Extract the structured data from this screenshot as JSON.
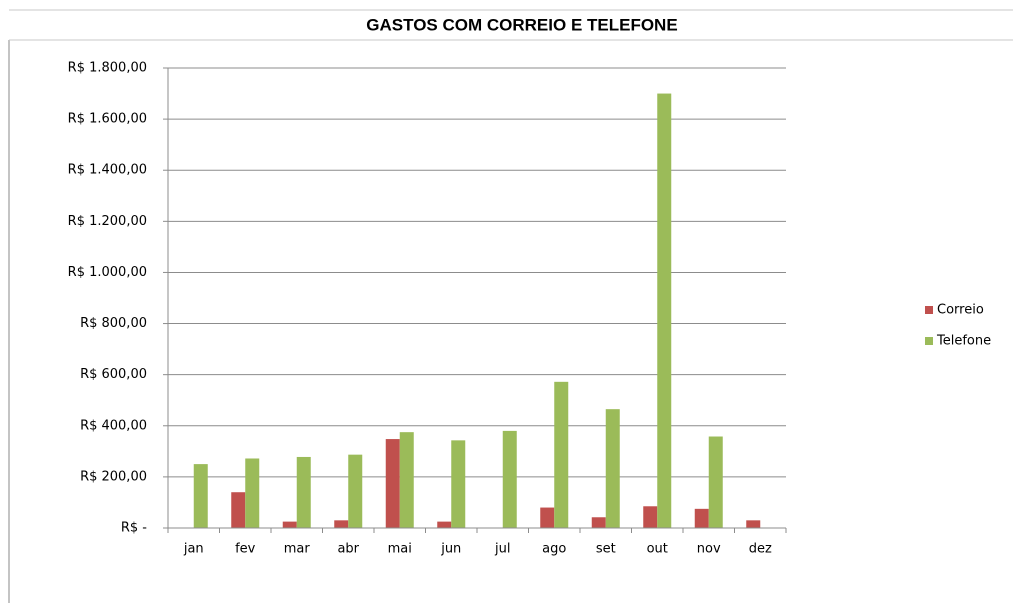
{
  "chart_data": {
    "type": "bar",
    "title": "GASTOS COM CORREIO E TELEFONE",
    "categories": [
      "jan",
      "fev",
      "mar",
      "abr",
      "mai",
      "jun",
      "jul",
      "ago",
      "set",
      "out",
      "nov",
      "dez"
    ],
    "series": [
      {
        "name": "Correio",
        "color": "#c0504d",
        "values": [
          0,
          140,
          25,
          30,
          348,
          25,
          0,
          80,
          42,
          85,
          75,
          30
        ]
      },
      {
        "name": "Telefone",
        "color": "#9bbb59",
        "values": [
          250,
          272,
          278,
          287,
          375,
          343,
          380,
          572,
          465,
          1700,
          358,
          0
        ]
      }
    ],
    "ylim": [
      0,
      1800
    ],
    "yticks": [
      {
        "value": 0,
        "label": "R$ -"
      },
      {
        "value": 200,
        "label": "R$ 200,00"
      },
      {
        "value": 400,
        "label": "R$ 400,00"
      },
      {
        "value": 600,
        "label": "R$ 600,00"
      },
      {
        "value": 800,
        "label": "R$ 800,00"
      },
      {
        "value": 1000,
        "label": "R$ 1.000,00"
      },
      {
        "value": 1200,
        "label": "R$ 1.200,00"
      },
      {
        "value": 1400,
        "label": "R$ 1.400,00"
      },
      {
        "value": 1600,
        "label": "R$ 1.600,00"
      },
      {
        "value": 1800,
        "label": "R$ 1.800,00"
      }
    ],
    "grid": true,
    "legend": "right"
  }
}
